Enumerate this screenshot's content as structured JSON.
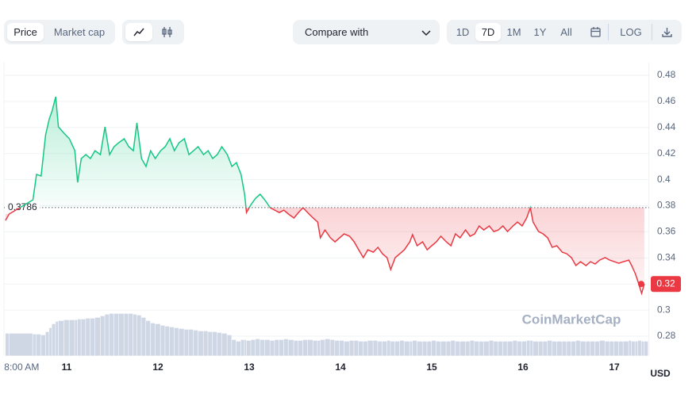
{
  "toolbar": {
    "tabs": [
      "Price",
      "Market cap"
    ],
    "active_tab": "Price",
    "compare": "Compare with",
    "ranges": [
      "1D",
      "7D",
      "1M",
      "1Y",
      "All"
    ],
    "active_range": "7D",
    "log": "LOG"
  },
  "watermark": "CoinMarketCap",
  "currency": "USD",
  "chart_data": {
    "type": "line",
    "baseline": 0.3786,
    "up_color": "#16c784",
    "down_color": "#ea3943",
    "x": [
      10.33,
      10.37,
      10.63,
      10.67,
      10.72,
      10.77,
      10.81,
      10.84,
      10.88,
      10.91,
      10.97,
      11.03,
      11.09,
      11.12,
      11.16,
      11.21,
      11.26,
      11.31,
      11.37,
      11.42,
      11.47,
      11.52,
      11.57,
      11.63,
      11.68,
      11.73,
      11.77,
      11.82,
      11.87,
      11.92,
      11.97,
      12.03,
      12.08,
      12.13,
      12.18,
      12.23,
      12.29,
      12.34,
      12.39,
      12.44,
      12.5,
      12.55,
      12.6,
      12.65,
      12.7,
      12.76,
      12.81,
      12.86,
      12.91,
      12.95,
      12.97,
      13.02,
      13.07,
      13.12,
      13.17,
      13.23,
      13.28,
      13.33,
      13.38,
      13.43,
      13.49,
      13.54,
      13.59,
      13.64,
      13.7,
      13.75,
      13.78,
      13.83,
      13.89,
      13.94,
      13.99,
      14.04,
      14.1,
      14.15,
      14.2,
      14.25,
      14.3,
      14.36,
      14.41,
      14.46,
      14.51,
      14.55,
      14.6,
      14.65,
      14.7,
      14.76,
      14.79,
      14.84,
      14.9,
      14.95,
      15.0,
      15.05,
      15.1,
      15.16,
      15.21,
      15.26,
      15.31,
      15.37,
      15.42,
      15.47,
      15.52,
      15.57,
      15.63,
      15.68,
      15.73,
      15.78,
      15.83,
      15.89,
      15.94,
      15.99,
      16.04,
      16.08,
      16.11,
      16.17,
      16.22,
      16.27,
      16.32,
      16.37,
      16.43,
      16.48,
      16.53,
      16.58,
      16.63,
      16.69,
      16.74,
      16.79,
      16.84,
      16.9,
      16.95,
      17.0,
      17.05,
      17.1,
      17.16,
      17.19,
      17.23,
      17.26,
      17.3,
      17.33
    ],
    "series": [
      {
        "name": "Price",
        "values": [
          0.3687,
          0.3736,
          0.3845,
          0.404,
          0.4028,
          0.4344,
          0.4466,
          0.4526,
          0.4636,
          0.4405,
          0.4356,
          0.4314,
          0.4222,
          0.3979,
          0.4162,
          0.4192,
          0.4162,
          0.4222,
          0.4192,
          0.4405,
          0.4192,
          0.4253,
          0.4283,
          0.4314,
          0.4253,
          0.4222,
          0.4435,
          0.4162,
          0.4101,
          0.4222,
          0.4162,
          0.4222,
          0.4253,
          0.4314,
          0.4222,
          0.4283,
          0.4314,
          0.4192,
          0.4222,
          0.4253,
          0.4192,
          0.4222,
          0.4162,
          0.4192,
          0.4253,
          0.4192,
          0.4101,
          0.4131,
          0.404,
          0.3888,
          0.3748,
          0.3809,
          0.3858,
          0.3888,
          0.3845,
          0.3785,
          0.3766,
          0.3748,
          0.3766,
          0.3736,
          0.3706,
          0.3748,
          0.3785,
          0.3748,
          0.3706,
          0.3675,
          0.3554,
          0.3614,
          0.3554,
          0.3523,
          0.3554,
          0.3584,
          0.3566,
          0.3523,
          0.3462,
          0.3402,
          0.3462,
          0.3444,
          0.3481,
          0.3432,
          0.3402,
          0.331,
          0.3402,
          0.3432,
          0.3462,
          0.3523,
          0.3578,
          0.3493,
          0.3523,
          0.3462,
          0.3493,
          0.3523,
          0.3566,
          0.3523,
          0.3493,
          0.3584,
          0.3554,
          0.3614,
          0.3566,
          0.3584,
          0.3645,
          0.3614,
          0.3645,
          0.3602,
          0.3614,
          0.3645,
          0.3602,
          0.3645,
          0.3675,
          0.3645,
          0.3706,
          0.3785,
          0.3675,
          0.3602,
          0.3584,
          0.3554,
          0.3481,
          0.3493,
          0.3444,
          0.3432,
          0.3402,
          0.3341,
          0.3371,
          0.3341,
          0.3371,
          0.3353,
          0.3383,
          0.3402,
          0.3383,
          0.3371,
          0.3359,
          0.3371,
          0.3383,
          0.3341,
          0.328,
          0.3219,
          0.3128,
          0.32
        ]
      }
    ],
    "volume": {
      "color": "#cfd6e4",
      "vlim": [
        0,
        60
      ],
      "values": [
        28,
        28,
        27,
        27,
        26,
        30,
        35,
        40,
        43,
        44,
        45,
        45,
        45,
        46,
        46,
        47,
        47,
        48,
        50,
        52,
        53,
        53,
        53,
        53,
        53,
        52,
        51,
        48,
        44,
        41,
        40,
        38,
        37,
        36,
        35,
        34,
        33,
        33,
        32,
        31,
        31,
        30,
        30,
        29,
        28,
        26,
        20,
        18,
        20,
        20,
        19,
        20,
        21,
        20,
        20,
        19,
        20,
        20,
        21,
        20,
        19,
        19,
        20,
        20,
        19,
        19,
        20,
        21,
        20,
        19,
        19,
        18,
        19,
        19,
        18,
        18,
        19,
        19,
        18,
        18,
        19,
        18,
        18,
        19,
        18,
        18,
        19,
        18,
        18,
        18,
        19,
        18,
        18,
        18,
        19,
        18,
        18,
        18,
        19,
        18,
        18,
        18,
        19,
        18,
        18,
        18,
        18,
        19,
        18,
        18,
        19,
        19,
        18,
        18,
        18,
        19,
        18,
        18,
        18,
        18,
        18,
        19,
        18,
        18,
        18,
        18,
        19,
        18,
        18,
        18,
        18,
        18,
        19,
        18,
        18,
        19,
        18,
        18
      ]
    },
    "xlim": [
      10.3,
      17.38
    ],
    "xticks": [
      {
        "value": 10.333,
        "label": "8:00 AM"
      },
      11,
      12,
      13,
      14,
      15,
      16,
      17
    ],
    "ylim": [
      0.265,
      0.49
    ],
    "yticks": [
      0.28,
      0.3,
      0.32,
      0.34,
      0.36,
      0.38,
      0.4,
      0.42,
      0.44,
      0.46,
      0.48
    ],
    "grid": true
  }
}
